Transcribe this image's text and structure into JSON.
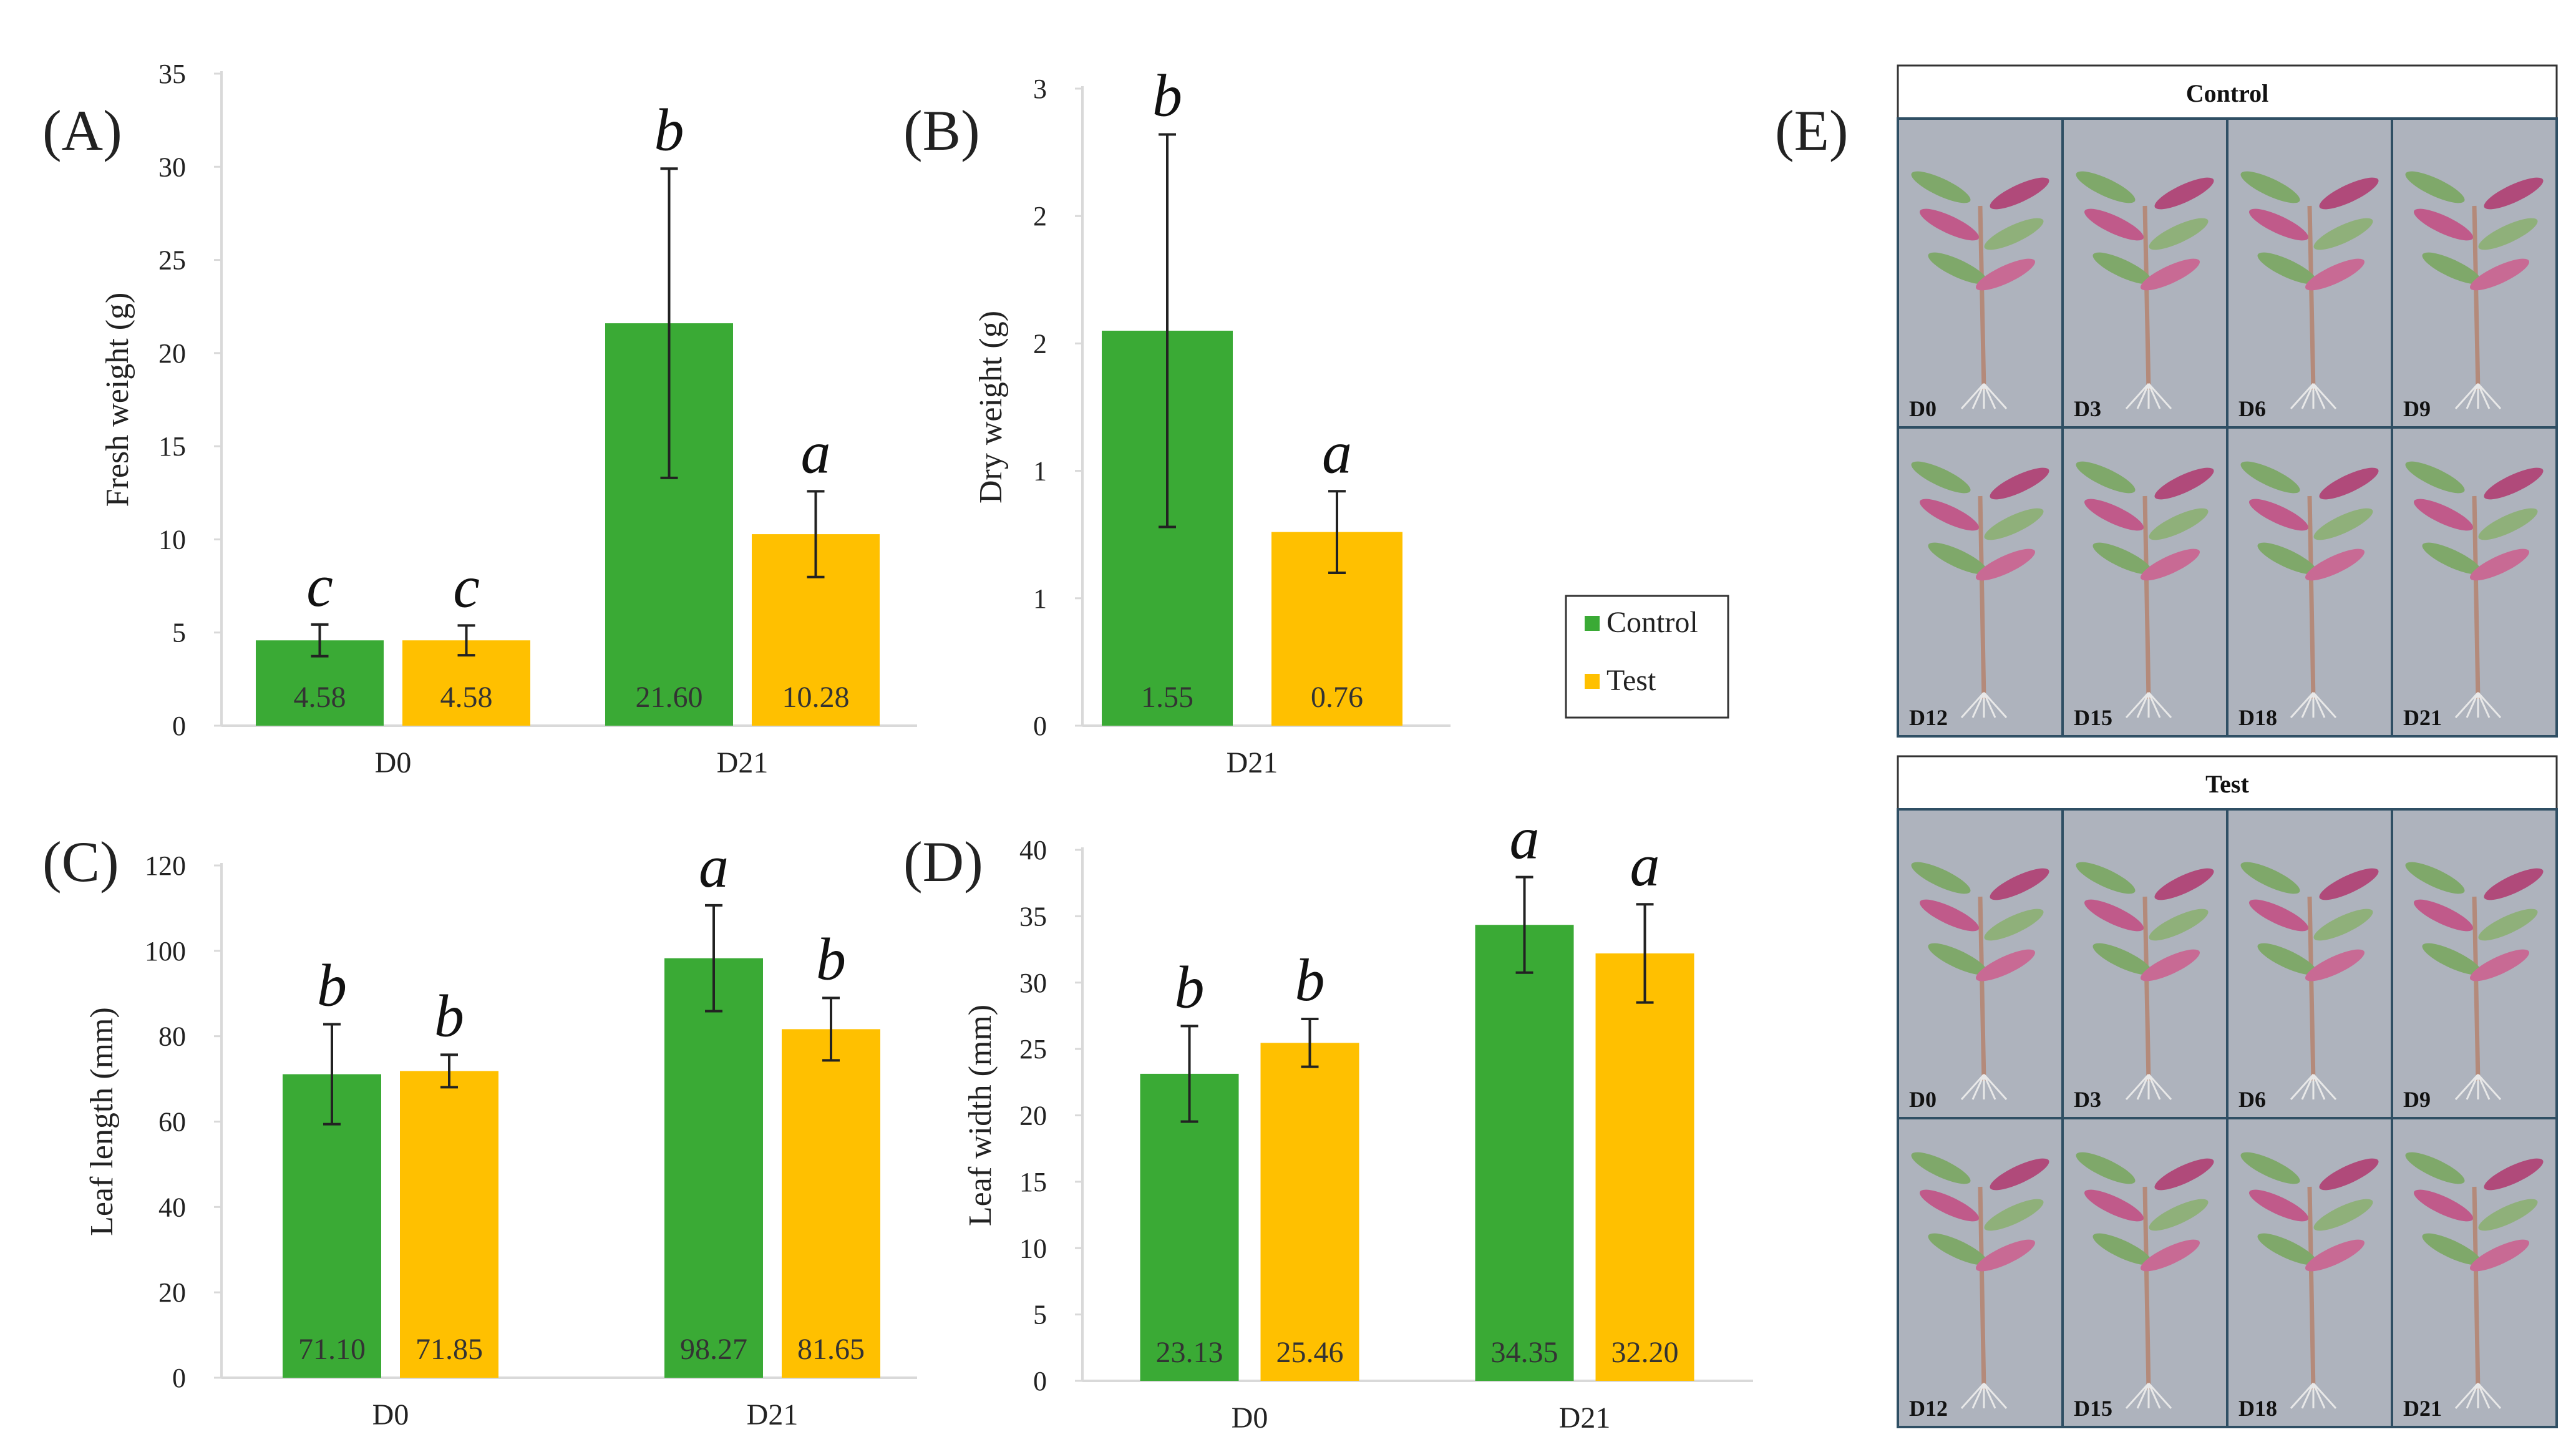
{
  "colors": {
    "control": "#3aaa35",
    "test": "#ffc000",
    "axis": "#d9d9d9",
    "text": "#222222",
    "photo_bg": "#aeb3bd",
    "photo_border": "#2f4f64"
  },
  "legend": {
    "control": "Control",
    "test": "Test"
  },
  "chart_data": [
    {
      "id": "A",
      "panel_label": "(A)",
      "type": "bar",
      "ylabel": "Fresh weight (g)",
      "ylim": [
        0,
        35
      ],
      "yticks": [
        0,
        5,
        10,
        15,
        20,
        25,
        30,
        35
      ],
      "categories": [
        "D0",
        "D21"
      ],
      "series": [
        {
          "name": "Control",
          "values": [
            4.58,
            21.6
          ],
          "errors": [
            0.85,
            8.3
          ],
          "value_labels": [
            "4.58",
            "21.60"
          ],
          "letters": [
            "c",
            "b"
          ]
        },
        {
          "name": "Test",
          "values": [
            4.58,
            10.28
          ],
          "errors": [
            0.8,
            2.3
          ],
          "value_labels": [
            "4.58",
            "10.28"
          ],
          "letters": [
            "c",
            "a"
          ]
        }
      ]
    },
    {
      "id": "B",
      "panel_label": "(B)",
      "type": "bar",
      "ylabel": "Dry weight (g)",
      "ylim": [
        0,
        2.5
      ],
      "yticks": [
        0,
        0.5,
        1,
        1.5,
        2,
        2.5
      ],
      "ytick_labels": [
        "0",
        "1",
        "1",
        "2",
        "2",
        "3"
      ],
      "categories": [
        "D21"
      ],
      "series": [
        {
          "name": "Control",
          "values": [
            1.55
          ],
          "errors": [
            0.77
          ],
          "value_labels": [
            "1.55"
          ],
          "letters": [
            "b"
          ]
        },
        {
          "name": "Test",
          "values": [
            0.76
          ],
          "errors": [
            0.16
          ],
          "value_labels": [
            "0.76"
          ],
          "letters": [
            "a"
          ]
        }
      ]
    },
    {
      "id": "C",
      "panel_label": "(C)",
      "type": "bar",
      "ylabel": "Leaf length (mm)",
      "ylim": [
        0,
        120
      ],
      "yticks": [
        0,
        20,
        40,
        60,
        80,
        100,
        120
      ],
      "categories": [
        "D0",
        "D21"
      ],
      "series": [
        {
          "name": "Control",
          "values": [
            71.1,
            98.27
          ],
          "errors": [
            11.7,
            12.4
          ],
          "value_labels": [
            "71.10",
            "98.27"
          ],
          "letters": [
            "b",
            "a"
          ]
        },
        {
          "name": "Test",
          "values": [
            71.85,
            81.65
          ],
          "errors": [
            3.8,
            7.3
          ],
          "value_labels": [
            "71.85",
            "81.65"
          ],
          "letters": [
            "b",
            "b"
          ]
        }
      ]
    },
    {
      "id": "D",
      "panel_label": "(D)",
      "type": "bar",
      "ylabel": "Leaf width (mm)",
      "ylim": [
        0,
        40
      ],
      "yticks": [
        0,
        5,
        10,
        15,
        20,
        25,
        30,
        35,
        40
      ],
      "categories": [
        "D0",
        "D21"
      ],
      "series": [
        {
          "name": "Control",
          "values": [
            23.13,
            34.35
          ],
          "errors": [
            3.6,
            3.6
          ],
          "value_labels": [
            "23.13",
            "34.35"
          ],
          "letters": [
            "b",
            "a"
          ]
        },
        {
          "name": "Test",
          "values": [
            25.46,
            32.2
          ],
          "errors": [
            1.8,
            3.7
          ],
          "value_labels": [
            "25.46",
            "32.20"
          ],
          "letters": [
            "b",
            "a"
          ]
        }
      ]
    }
  ],
  "photos": {
    "panel_label": "(E)",
    "groups": [
      {
        "title": "Control",
        "days": [
          "D0",
          "D3",
          "D6",
          "D9",
          "D12",
          "D15",
          "D18",
          "D21"
        ]
      },
      {
        "title": "Test",
        "days": [
          "D0",
          "D3",
          "D6",
          "D9",
          "D12",
          "D15",
          "D18",
          "D21"
        ]
      }
    ]
  }
}
